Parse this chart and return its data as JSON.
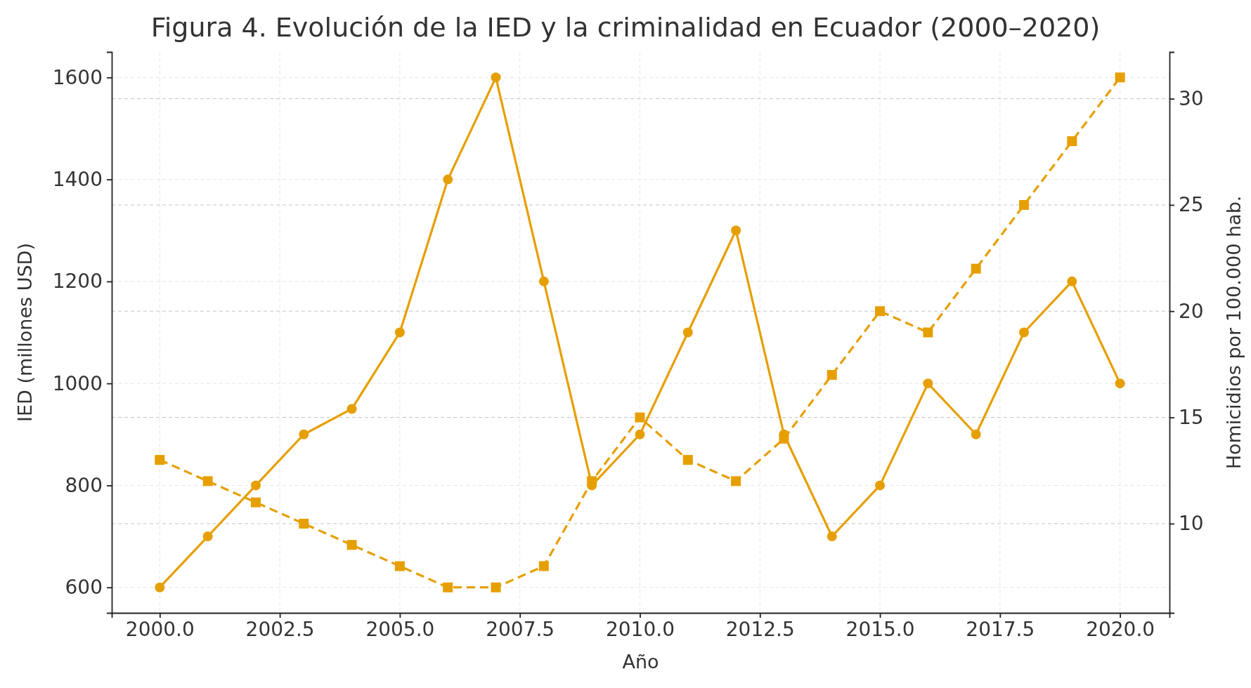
{
  "chart_data": {
    "type": "line",
    "title": "Figura 4. Evolución de la IED y la criminalidad en Ecuador (2000–2020)",
    "xlabel": "Año",
    "ylabel": "IED (millones USD)",
    "y2label": "Homicidios por 100.000 hab.",
    "x": [
      2000,
      2001,
      2002,
      2003,
      2004,
      2005,
      2006,
      2007,
      2008,
      2009,
      2010,
      2011,
      2012,
      2013,
      2014,
      2015,
      2016,
      2017,
      2018,
      2019,
      2020
    ],
    "series": [
      {
        "color": "#e69f00",
        "marker": "circle",
        "line_style": "solid",
        "values": [
          600,
          700,
          800,
          900,
          950,
          1100,
          1400,
          1600,
          1200,
          800,
          900,
          1100,
          1300,
          900,
          700,
          800,
          1000,
          900,
          1100,
          1200,
          1000
        ]
      },
      {
        "color": "#e69f00",
        "marker": "square",
        "line_style": "dashed",
        "axis": "y2",
        "values": [
          13,
          12,
          11,
          10,
          9,
          8,
          7,
          7,
          8,
          12,
          15,
          13,
          12,
          14,
          17,
          20,
          19,
          22,
          25,
          28,
          31
        ]
      }
    ],
    "xlim": [
      1999,
      2021.03
    ],
    "xticks": [
      {
        "value": 2000,
        "label": "2000.0"
      },
      {
        "value": 2002.5,
        "label": "2002.5"
      },
      {
        "value": 2005,
        "label": "2005.0"
      },
      {
        "value": 2007.5,
        "label": "2007.5"
      },
      {
        "value": 2010,
        "label": "2010.0"
      },
      {
        "value": 2012.5,
        "label": "2012.5"
      },
      {
        "value": 2015,
        "label": "2015.0"
      },
      {
        "value": 2017.5,
        "label": "2017.5"
      },
      {
        "value": 2020,
        "label": "2020.0"
      }
    ],
    "ylim": [
      550,
      1650
    ],
    "yticks": [
      600,
      800,
      1000,
      1200,
      1400,
      1600
    ],
    "y2lim": [
      5.8,
      32.2
    ],
    "y2ticks": [
      10,
      15,
      20,
      25,
      30
    ],
    "grid": true
  }
}
